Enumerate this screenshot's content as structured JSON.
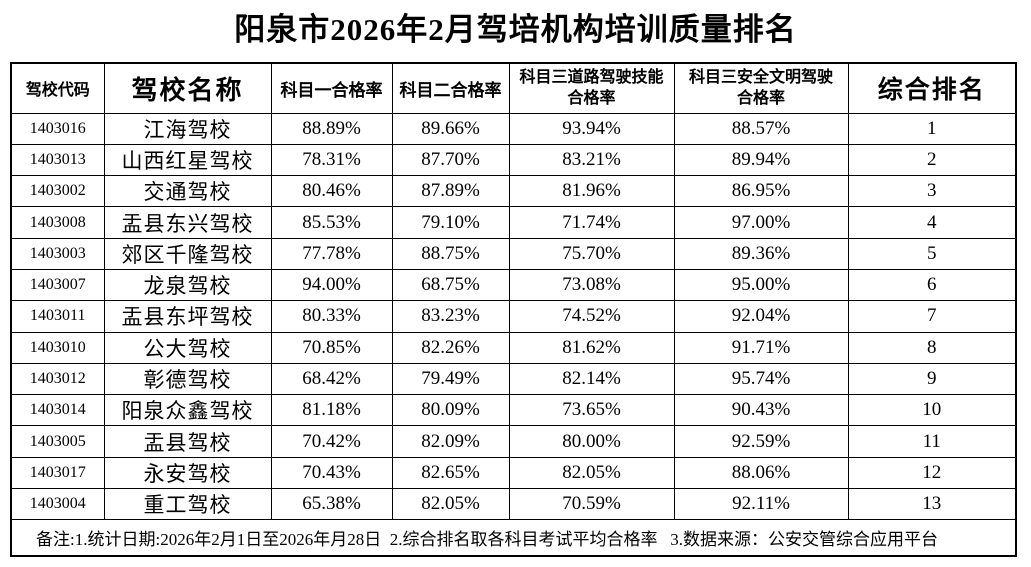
{
  "page": {
    "title": "阳泉市2026年2月驾培机构培训质量排名"
  },
  "table": {
    "headers": {
      "code": "驾校代码",
      "name": "驾校名称",
      "subject1": "科目一合格率",
      "subject2": "科目二合格率",
      "subject3_road": "科目三道路驾驶技能\n合格率",
      "subject3_safe": "科目三安全文明驾驶\n合格率",
      "rank": "综合排名"
    },
    "rows": [
      {
        "code": "1403016",
        "name": "江海驾校",
        "subject1": "88.89%",
        "subject2": "89.66%",
        "subject3_road": "93.94%",
        "subject3_safe": "88.57%",
        "rank": "1"
      },
      {
        "code": "1403013",
        "name": "山西红星驾校",
        "subject1": "78.31%",
        "subject2": "87.70%",
        "subject3_road": "83.21%",
        "subject3_safe": "89.94%",
        "rank": "2"
      },
      {
        "code": "1403002",
        "name": "交通驾校",
        "subject1": "80.46%",
        "subject2": "87.89%",
        "subject3_road": "81.96%",
        "subject3_safe": "86.95%",
        "rank": "3"
      },
      {
        "code": "1403008",
        "name": "盂县东兴驾校",
        "subject1": "85.53%",
        "subject2": "79.10%",
        "subject3_road": "71.74%",
        "subject3_safe": "97.00%",
        "rank": "4"
      },
      {
        "code": "1403003",
        "name": "郊区千隆驾校",
        "subject1": "77.78%",
        "subject2": "88.75%",
        "subject3_road": "75.70%",
        "subject3_safe": "89.36%",
        "rank": "5"
      },
      {
        "code": "1403007",
        "name": "龙泉驾校",
        "subject1": "94.00%",
        "subject2": "68.75%",
        "subject3_road": "73.08%",
        "subject3_safe": "95.00%",
        "rank": "6"
      },
      {
        "code": "1403011",
        "name": "盂县东坪驾校",
        "subject1": "80.33%",
        "subject2": "83.23%",
        "subject3_road": "74.52%",
        "subject3_safe": "92.04%",
        "rank": "7"
      },
      {
        "code": "1403010",
        "name": "公大驾校",
        "subject1": "70.85%",
        "subject2": "82.26%",
        "subject3_road": "81.62%",
        "subject3_safe": "91.71%",
        "rank": "8"
      },
      {
        "code": "1403012",
        "name": "彰德驾校",
        "subject1": "68.42%",
        "subject2": "79.49%",
        "subject3_road": "82.14%",
        "subject3_safe": "95.74%",
        "rank": "9"
      },
      {
        "code": "1403014",
        "name": "阳泉众鑫驾校",
        "subject1": "81.18%",
        "subject2": "80.09%",
        "subject3_road": "73.65%",
        "subject3_safe": "90.43%",
        "rank": "10"
      },
      {
        "code": "1403005",
        "name": "盂县驾校",
        "subject1": "70.42%",
        "subject2": "82.09%",
        "subject3_road": "80.00%",
        "subject3_safe": "92.59%",
        "rank": "11"
      },
      {
        "code": "1403017",
        "name": "永安驾校",
        "subject1": "70.43%",
        "subject2": "82.65%",
        "subject3_road": "82.05%",
        "subject3_safe": "88.06%",
        "rank": "12"
      },
      {
        "code": "1403004",
        "name": "重工驾校",
        "subject1": "65.38%",
        "subject2": "82.05%",
        "subject3_road": "70.59%",
        "subject3_safe": "92.11%",
        "rank": "13"
      }
    ],
    "note": "备注:1.统计日期:2026年2月1日至2026年月28日  2.综合排名取各科目考试平均合格率   3.数据来源：公安交管综合应用平台"
  }
}
